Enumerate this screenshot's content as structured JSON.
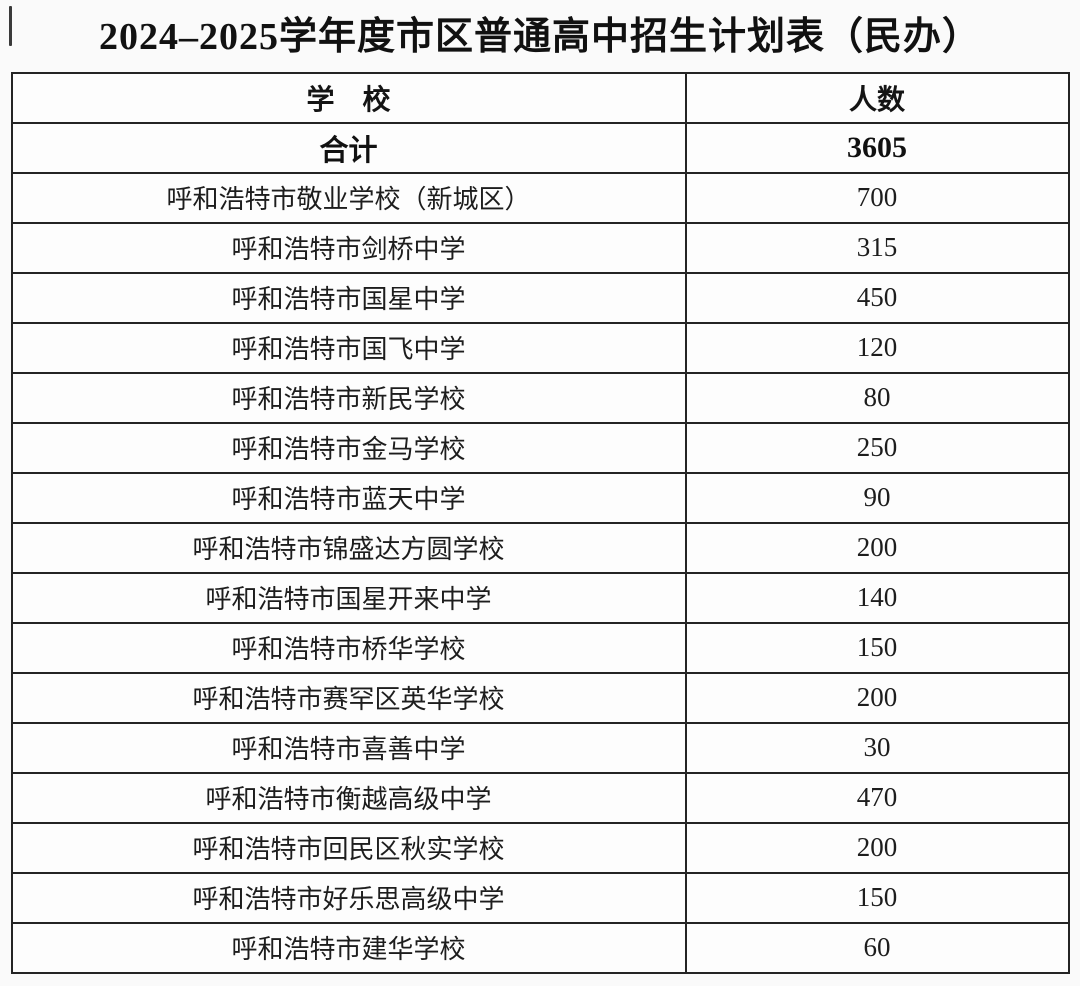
{
  "page": {
    "background_color": "#fafafa",
    "text_color": "#1d1d1d",
    "border_color": "#242424"
  },
  "title": "2024–2025学年度市区普通高中招生计划表（民办）",
  "table": {
    "header": {
      "school": "学　校",
      "count": "人数"
    },
    "total": {
      "school": "合计",
      "count": "3605"
    },
    "rows": [
      {
        "school": "呼和浩特市敬业学校（新城区）",
        "count": "700"
      },
      {
        "school": "呼和浩特市剑桥中学",
        "count": "315"
      },
      {
        "school": "呼和浩特市国星中学",
        "count": "450"
      },
      {
        "school": "呼和浩特市国飞中学",
        "count": "120"
      },
      {
        "school": "呼和浩特市新民学校",
        "count": "80"
      },
      {
        "school": "呼和浩特市金马学校",
        "count": "250"
      },
      {
        "school": "呼和浩特市蓝天中学",
        "count": "90"
      },
      {
        "school": "呼和浩特市锦盛达方圆学校",
        "count": "200"
      },
      {
        "school": "呼和浩特市国星开来中学",
        "count": "140"
      },
      {
        "school": "呼和浩特市桥华学校",
        "count": "150"
      },
      {
        "school": "呼和浩特市赛罕区英华学校",
        "count": "200"
      },
      {
        "school": "呼和浩特市喜善中学",
        "count": "30"
      },
      {
        "school": "呼和浩特市衡越高级中学",
        "count": "470"
      },
      {
        "school": "呼和浩特市回民区秋实学校",
        "count": "200"
      },
      {
        "school": "呼和浩特市好乐思高级中学",
        "count": "150"
      },
      {
        "school": "呼和浩特市建华学校",
        "count": "60"
      }
    ]
  }
}
